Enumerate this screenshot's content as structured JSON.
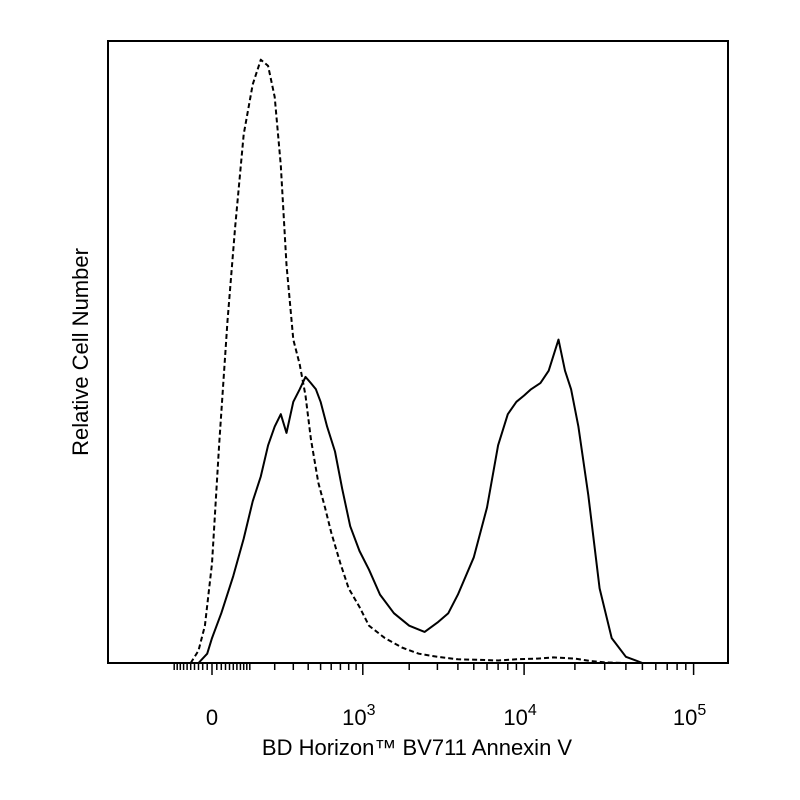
{
  "chart_data": {
    "type": "line",
    "title": "",
    "xlabel": "BD Horizon™ BV711 Annexin V",
    "ylabel": "Relative Cell Number",
    "xscale": "biexponential",
    "xlim": [
      -60,
      100000
    ],
    "ylim": [
      0,
      100
    ],
    "grid": false,
    "legend": "none",
    "x_ticks": [
      {
        "value": 0,
        "base": "0",
        "exp": ""
      },
      {
        "value": 1000,
        "base": "10",
        "exp": "3"
      },
      {
        "value": 10000,
        "base": "10",
        "exp": "4"
      },
      {
        "value": 100000,
        "base": "10",
        "exp": "5"
      }
    ],
    "series": [
      {
        "style": "dashed",
        "color": "#000000",
        "x": [
          -50,
          -30,
          -15,
          0,
          15,
          35,
          55,
          80,
          110,
          140,
          170,
          200,
          230,
          260,
          300,
          340,
          380,
          420,
          480,
          540,
          600,
          700,
          800,
          950,
          1100,
          1400,
          1800,
          2300,
          3000,
          4000,
          5500,
          7000,
          9000,
          12000,
          15000,
          20000,
          25000,
          30000,
          40000
        ],
        "y": [
          0,
          2,
          6,
          16,
          35,
          55,
          70,
          85,
          93,
          97,
          96,
          91,
          80,
          64,
          52,
          48,
          43,
          36,
          29,
          25,
          21,
          16,
          12,
          9,
          6,
          4,
          2.5,
          1.5,
          1,
          0.6,
          0.5,
          0.4,
          0.6,
          0.7,
          0.9,
          0.7,
          0.3,
          0.1,
          0
        ]
      },
      {
        "style": "solid",
        "color": "#000000",
        "x": [
          -30,
          -10,
          0,
          20,
          50,
          80,
          110,
          140,
          170,
          200,
          230,
          260,
          300,
          340,
          380,
          420,
          460,
          500,
          560,
          640,
          720,
          820,
          950,
          1100,
          1300,
          1600,
          2000,
          2500,
          3000,
          3500,
          4000,
          5000,
          6000,
          7000,
          8000,
          9000,
          10000,
          11000,
          12500,
          14000,
          16000,
          17500,
          19000,
          21000,
          24000,
          28000,
          33000,
          40000,
          50000
        ],
        "y": [
          0,
          1.5,
          4,
          8,
          14,
          20,
          26,
          30,
          35,
          38,
          40,
          37,
          42,
          44,
          46,
          45,
          44,
          42,
          38,
          34,
          28,
          22,
          18,
          15,
          11,
          8,
          6,
          5,
          6.5,
          8,
          11,
          17,
          25,
          35,
          40,
          42,
          43,
          44,
          45,
          47,
          52,
          47,
          44,
          38,
          27,
          12,
          4,
          1,
          0
        ]
      }
    ]
  }
}
